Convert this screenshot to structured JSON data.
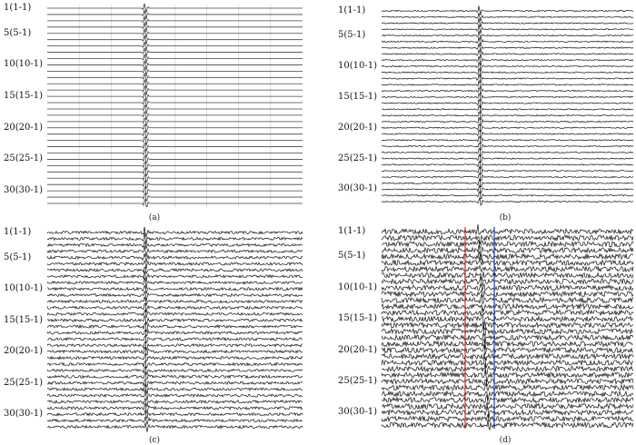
{
  "chart_data": [
    {
      "type": "line",
      "caption": "(a)",
      "noise": 0,
      "trace_count": 32,
      "ytick_labels": [
        "1(1-1)",
        "5(5-1)",
        "10(10-1)",
        "15(15-1)",
        "20(20-1)",
        "25(25-1)",
        "30(30-1)"
      ],
      "ytick_traces": [
        1,
        5,
        10,
        15,
        20,
        25,
        30
      ],
      "grid": true,
      "trace_color": "#444444",
      "markers": []
    },
    {
      "type": "line",
      "caption": "(b)",
      "noise": 0.18,
      "trace_count": 32,
      "ytick_labels": [
        "1(1-1)",
        "5(5-1)",
        "10(10-1)",
        "15(15-1)",
        "20(20-1)",
        "25(25-1)",
        "30(30-1)"
      ],
      "ytick_traces": [
        1,
        5,
        10,
        15,
        20,
        25,
        30
      ],
      "grid": false,
      "trace_color": "#111111",
      "markers": []
    },
    {
      "type": "line",
      "caption": "(c)",
      "noise": 0.4,
      "trace_count": 32,
      "ytick_labels": [
        "1(1-1)",
        "5(5-1)",
        "10(10-1)",
        "15(15-1)",
        "20(20-1)",
        "25(25-1)",
        "30(30-1)"
      ],
      "ytick_traces": [
        1,
        5,
        10,
        15,
        20,
        25,
        30
      ],
      "grid": false,
      "trace_color": "#111111",
      "markers": []
    },
    {
      "type": "line",
      "caption": "(d)",
      "noise": 0.75,
      "trace_count": 32,
      "ytick_labels": [
        "1(1-1)",
        "5(5-1)",
        "10(10-1)",
        "15(15-1)",
        "20(20-1)",
        "25(25-1)",
        "30(30-1)"
      ],
      "ytick_traces": [
        1,
        5,
        10,
        15,
        20,
        25,
        30
      ],
      "grid": false,
      "trace_color": "#111111",
      "markers": [
        {
          "color": "#d62728"
        },
        {
          "color": "#1f3b99"
        }
      ]
    }
  ]
}
